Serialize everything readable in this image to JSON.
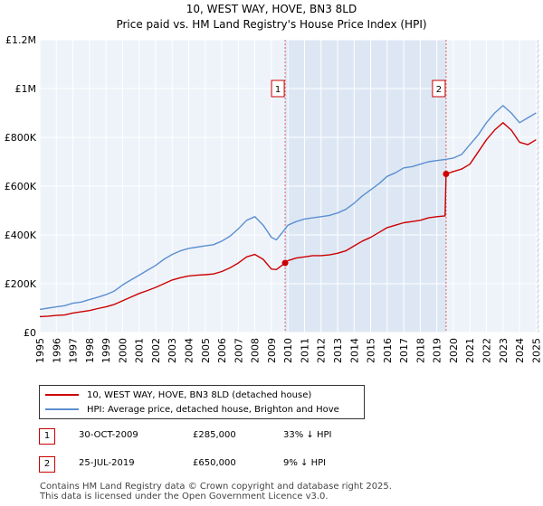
{
  "chart_data": {
    "type": "line",
    "title": "10, WEST WAY, HOVE, BN3 8LD",
    "subtitle": "Price paid vs. HM Land Registry's House Price Index (HPI)",
    "xlim": [
      1995,
      2025.2
    ],
    "ylim": [
      0,
      1200000
    ],
    "y_ticks": [
      {
        "value": 0,
        "label": "£0"
      },
      {
        "value": 200000,
        "label": "£200K"
      },
      {
        "value": 400000,
        "label": "£400K"
      },
      {
        "value": 600000,
        "label": "£600K"
      },
      {
        "value": 800000,
        "label": "£800K"
      },
      {
        "value": 1000000,
        "label": "£1M"
      },
      {
        "value": 1200000,
        "label": "£1.2M"
      }
    ],
    "x_ticks": [
      "1995",
      "1996",
      "1997",
      "1998",
      "1999",
      "2000",
      "2001",
      "2002",
      "2003",
      "2004",
      "2005",
      "2006",
      "2007",
      "2008",
      "2009",
      "2010",
      "2011",
      "2012",
      "2013",
      "2014",
      "2015",
      "2016",
      "2017",
      "2018",
      "2019",
      "2020",
      "2021",
      "2022",
      "2023",
      "2024",
      "2025"
    ],
    "series": [
      {
        "name": "10, WEST WAY, HOVE, BN3 8LD (detached house)",
        "color": "#cc0000",
        "x": [
          1995.0,
          1995.5,
          1996.0,
          1996.5,
          1997.0,
          1997.5,
          1998.0,
          1998.5,
          1999.0,
          1999.5,
          2000.0,
          2000.5,
          2001.0,
          2001.5,
          2002.0,
          2002.5,
          2003.0,
          2003.5,
          2004.0,
          2004.5,
          2005.0,
          2005.5,
          2006.0,
          2006.5,
          2007.0,
          2007.5,
          2008.0,
          2008.5,
          2009.0,
          2009.3,
          2009.83,
          2010.0,
          2010.5,
          2011.0,
          2011.5,
          2012.0,
          2012.5,
          2013.0,
          2013.5,
          2014.0,
          2014.5,
          2015.0,
          2015.5,
          2016.0,
          2016.5,
          2017.0,
          2017.5,
          2018.0,
          2018.5,
          2019.0,
          2019.5,
          2019.56,
          2020.0,
          2020.5,
          2021.0,
          2021.5,
          2022.0,
          2022.5,
          2023.0,
          2023.5,
          2024.0,
          2024.5,
          2025.0
        ],
        "values": [
          65000,
          67000,
          70000,
          72000,
          80000,
          85000,
          90000,
          98000,
          105000,
          115000,
          130000,
          145000,
          160000,
          172000,
          185000,
          200000,
          215000,
          225000,
          232000,
          235000,
          237000,
          240000,
          250000,
          265000,
          285000,
          310000,
          320000,
          300000,
          260000,
          258000,
          285000,
          295000,
          305000,
          310000,
          315000,
          315000,
          318000,
          325000,
          335000,
          355000,
          375000,
          390000,
          410000,
          430000,
          440000,
          450000,
          455000,
          460000,
          470000,
          475000,
          478000,
          650000,
          660000,
          670000,
          690000,
          740000,
          790000,
          830000,
          860000,
          830000,
          780000,
          770000,
          790000
        ]
      },
      {
        "name": "HPI: Average price, detached house, Brighton and Hove",
        "color": "#5b8fd0",
        "x": [
          1995.0,
          1995.5,
          1996.0,
          1996.5,
          1997.0,
          1997.5,
          1998.0,
          1998.5,
          1999.0,
          1999.5,
          2000.0,
          2000.5,
          2001.0,
          2001.5,
          2002.0,
          2002.5,
          2003.0,
          2003.5,
          2004.0,
          2004.5,
          2005.0,
          2005.5,
          2006.0,
          2006.5,
          2007.0,
          2007.5,
          2008.0,
          2008.5,
          2009.0,
          2009.3,
          2009.83,
          2010.0,
          2010.5,
          2011.0,
          2011.5,
          2012.0,
          2012.5,
          2013.0,
          2013.5,
          2014.0,
          2014.5,
          2015.0,
          2015.5,
          2016.0,
          2016.5,
          2017.0,
          2017.5,
          2018.0,
          2018.5,
          2019.0,
          2019.56,
          2020.0,
          2020.5,
          2021.0,
          2021.5,
          2022.0,
          2022.5,
          2023.0,
          2023.5,
          2024.0,
          2024.5,
          2025.0
        ],
        "values": [
          95000,
          100000,
          105000,
          110000,
          120000,
          125000,
          135000,
          145000,
          155000,
          170000,
          195000,
          215000,
          235000,
          255000,
          275000,
          300000,
          320000,
          335000,
          345000,
          350000,
          355000,
          360000,
          375000,
          395000,
          425000,
          460000,
          475000,
          440000,
          390000,
          380000,
          425000,
          440000,
          455000,
          465000,
          470000,
          475000,
          480000,
          490000,
          505000,
          530000,
          560000,
          585000,
          610000,
          640000,
          655000,
          675000,
          680000,
          690000,
          700000,
          705000,
          710000,
          715000,
          730000,
          770000,
          810000,
          860000,
          900000,
          930000,
          900000,
          860000,
          880000,
          900000
        ]
      }
    ],
    "markers": [
      {
        "label": "1",
        "x": 2009.83,
        "value": 285000
      },
      {
        "label": "2",
        "x": 2019.56,
        "value": 650000
      }
    ]
  },
  "legend": {
    "series1_label": "10, WEST WAY, HOVE, BN3 8LD (detached house)",
    "series2_label": "HPI: Average price, detached house, Brighton and Hove"
  },
  "transactions": [
    {
      "label": "1",
      "date": "30-OCT-2009",
      "price": "£285,000",
      "hpi": "33% ↓ HPI"
    },
    {
      "label": "2",
      "date": "25-JUL-2019",
      "price": "£650,000",
      "hpi": "9% ↓ HPI"
    }
  ],
  "footer": {
    "line1": "Contains HM Land Registry data © Crown copyright and database right 2025.",
    "line2": "This data is licensed under the Open Government Licence v3.0."
  }
}
